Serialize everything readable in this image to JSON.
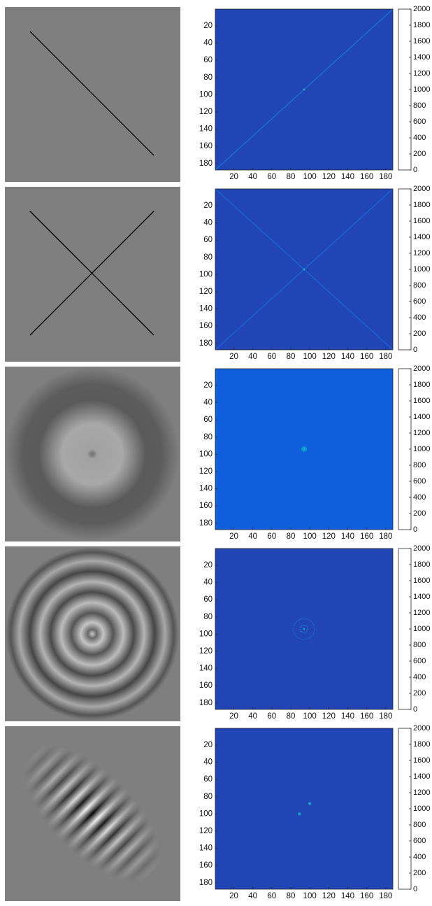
{
  "chart_data": [
    {
      "type": "heatmap",
      "colormap": "parula",
      "xlim": [
        0.5,
        187.5
      ],
      "ylim": [
        0.5,
        187.5
      ],
      "y_reversed": true,
      "xticks": [
        20,
        40,
        60,
        80,
        100,
        120,
        140,
        160,
        180
      ],
      "yticks": [
        20,
        40,
        60,
        80,
        100,
        120,
        140,
        160,
        180
      ],
      "clim": [
        0,
        2000
      ],
      "cticks": [
        0,
        200,
        400,
        600,
        800,
        1000,
        1200,
        1400,
        1600,
        1800,
        2000
      ],
      "background": 150,
      "lines": [
        {
          "x": [
            0.5,
            187.5
          ],
          "y": [
            187.5,
            0.5
          ],
          "value": 500
        }
      ],
      "points": [
        {
          "x": 94,
          "y": 94,
          "r": 1,
          "value": 1100
        }
      ]
    },
    {
      "type": "heatmap",
      "colormap": "parula",
      "xlim": [
        0.5,
        187.5
      ],
      "ylim": [
        0.5,
        187.5
      ],
      "y_reversed": true,
      "xticks": [
        20,
        40,
        60,
        80,
        100,
        120,
        140,
        160,
        180
      ],
      "yticks": [
        20,
        40,
        60,
        80,
        100,
        120,
        140,
        160,
        180
      ],
      "clim": [
        0,
        2000
      ],
      "cticks": [
        0,
        200,
        400,
        600,
        800,
        1000,
        1200,
        1400,
        1600,
        1800,
        2000
      ],
      "background": 150,
      "lines": [
        {
          "x": [
            0.5,
            187.5
          ],
          "y": [
            187.5,
            0.5
          ],
          "value": 400
        },
        {
          "x": [
            0.5,
            187.5
          ],
          "y": [
            0.5,
            187.5
          ],
          "value": 400
        }
      ],
      "points": [
        {
          "x": 94,
          "y": 94,
          "r": 1,
          "value": 1100
        }
      ]
    },
    {
      "type": "heatmap",
      "colormap": "parula",
      "xlim": [
        0.5,
        187.5
      ],
      "ylim": [
        0.5,
        187.5
      ],
      "y_reversed": true,
      "xticks": [
        20,
        40,
        60,
        80,
        100,
        120,
        140,
        160,
        180
      ],
      "yticks": [
        20,
        40,
        60,
        80,
        100,
        120,
        140,
        160,
        180
      ],
      "clim": [
        0,
        2000
      ],
      "cticks": [
        0,
        200,
        400,
        600,
        800,
        1000,
        1200,
        1400,
        1600,
        1800,
        2000
      ],
      "background": 300,
      "lines": [],
      "points": [
        {
          "x": 94,
          "y": 94,
          "r": 3,
          "value": 700
        },
        {
          "x": 94,
          "y": 94,
          "r": 1,
          "value": 1000
        }
      ]
    },
    {
      "type": "heatmap",
      "colormap": "parula",
      "xlim": [
        0.5,
        187.5
      ],
      "ylim": [
        0.5,
        187.5
      ],
      "y_reversed": true,
      "xticks": [
        20,
        40,
        60,
        80,
        100,
        120,
        140,
        160,
        180
      ],
      "yticks": [
        20,
        40,
        60,
        80,
        100,
        120,
        140,
        160,
        180
      ],
      "clim": [
        0,
        2000
      ],
      "cticks": [
        0,
        200,
        400,
        600,
        800,
        1000,
        1200,
        1400,
        1600,
        1800,
        2000
      ],
      "background": 150,
      "lines": [],
      "rings": [
        {
          "x": 94,
          "y": 94,
          "r": 4,
          "value": 600
        },
        {
          "x": 94,
          "y": 94,
          "r": 11,
          "value": 450
        }
      ],
      "points": [
        {
          "x": 94,
          "y": 94,
          "r": 1,
          "value": 900
        }
      ]
    },
    {
      "type": "heatmap",
      "colormap": "parula",
      "xlim": [
        0.5,
        187.5
      ],
      "ylim": [
        0.5,
        187.5
      ],
      "y_reversed": true,
      "xticks": [
        20,
        40,
        60,
        80,
        100,
        120,
        140,
        160,
        180
      ],
      "yticks": [
        20,
        40,
        60,
        80,
        100,
        120,
        140,
        160,
        180
      ],
      "clim": [
        0,
        2000
      ],
      "cticks": [
        0,
        200,
        400,
        600,
        800,
        1000,
        1200,
        1400,
        1600,
        1800,
        2000
      ],
      "background": 150,
      "lines": [],
      "points": [
        {
          "x": 89,
          "y": 100,
          "r": 1.5,
          "value": 900
        },
        {
          "x": 100,
          "y": 88,
          "r": 1.5,
          "value": 900
        }
      ]
    }
  ]
}
